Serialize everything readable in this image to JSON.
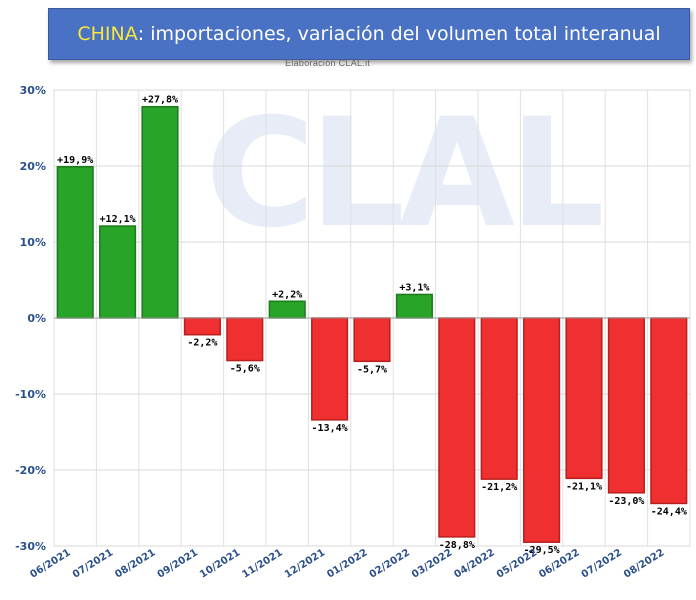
{
  "header": {
    "title_country": "CHINA",
    "title_rest": ": importaciones, variación del volumen total interanual",
    "subtitle": "Elaboración CLAL.it"
  },
  "watermark": "CLAL",
  "colors": {
    "positive": "#28a428",
    "positive_border": "#1d7a1d",
    "negative": "#f03030",
    "negative_border": "#b81e1e",
    "axis_text": "#2a4f8a"
  },
  "chart_data": {
    "type": "bar",
    "categories": [
      "06/2021",
      "07/2021",
      "08/2021",
      "09/2021",
      "10/2021",
      "11/2021",
      "12/2021",
      "01/2022",
      "02/2022",
      "03/2022",
      "04/2022",
      "05/2022",
      "06/2022",
      "07/2022",
      "08/2022"
    ],
    "values": [
      19.9,
      12.1,
      27.8,
      -2.2,
      -5.6,
      2.2,
      -13.4,
      -5.7,
      3.1,
      -28.8,
      -21.2,
      -29.5,
      -21.1,
      -23.0,
      -24.4
    ],
    "data_labels": [
      "+19,9%",
      "+12,1%",
      "+27,8%",
      "-2,2%",
      "-5,6%",
      "+2,2%",
      "-13,4%",
      "-5,7%",
      "+3,1%",
      "-28,8%",
      "-21,2%",
      "-29,5%",
      "-21,1%",
      "-23,0%",
      "-24,4%"
    ],
    "yticks": [
      "30%",
      "20%",
      "10%",
      "0%",
      "-10%",
      "-20%",
      "-30%"
    ],
    "ytick_values": [
      30,
      20,
      10,
      0,
      -10,
      -20,
      -30
    ],
    "ylim": [
      -30,
      30
    ],
    "grid": true,
    "title": "CHINA: importaciones, variación del volumen total interanual",
    "xlabel": "",
    "ylabel": ""
  }
}
